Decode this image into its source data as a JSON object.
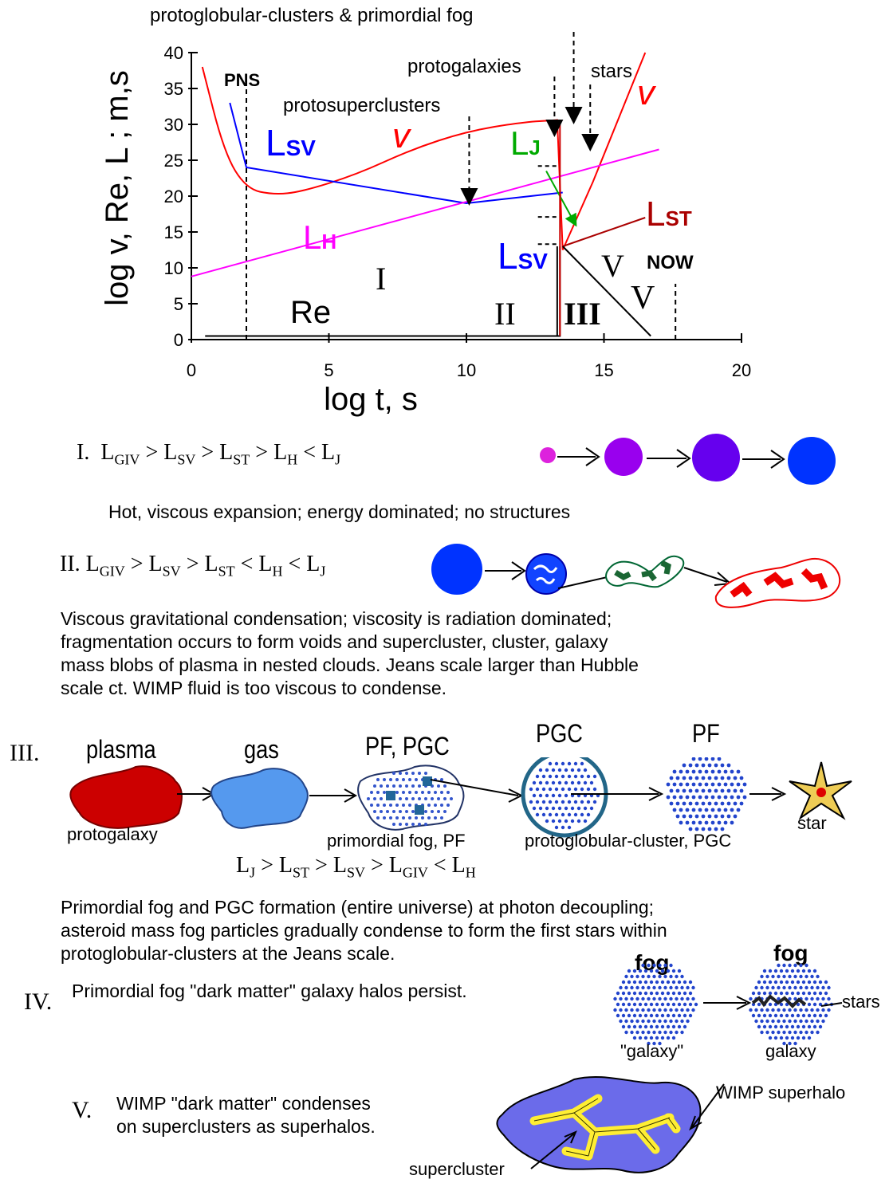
{
  "chart_data": {
    "type": "line",
    "title": "",
    "xlabel": "log t, s",
    "ylabel": "log v, Re, L ; m,s",
    "xlim": [
      0,
      20
    ],
    "ylim": [
      0,
      40
    ],
    "xticks": [
      "0",
      "5",
      "10",
      "15",
      "20"
    ],
    "yticks": [
      "0",
      "5",
      "10",
      "15",
      "20",
      "25",
      "30",
      "35",
      "40"
    ],
    "series": [
      {
        "name": "v",
        "color": "#ff0000",
        "x": [
          0.4,
          1.2,
          2,
          3,
          4,
          6,
          8,
          10,
          12,
          13.3,
          13.5,
          14.6,
          16.5
        ],
        "y": [
          38,
          26,
          21,
          20.2,
          20.6,
          23,
          26.5,
          29,
          30.3,
          30.6,
          12.5,
          22,
          40
        ]
      },
      {
        "name": "L_SV",
        "color": "#0000ff",
        "x": [
          1.4,
          2,
          10,
          13.5
        ],
        "y": [
          33,
          24,
          19,
          20.5
        ]
      },
      {
        "name": "L_H",
        "color": "#ff00ff",
        "x": [
          0,
          17
        ],
        "y": [
          8.8,
          26.5
        ]
      },
      {
        "name": "L_ST",
        "color": "#aa0000",
        "x": [
          13.5,
          16.5
        ],
        "y": [
          13,
          17
        ]
      },
      {
        "name": "L_J",
        "color": "#00aa00",
        "x": [
          12.9,
          13.9
        ],
        "y": [
          23.5,
          16.5
        ]
      },
      {
        "name": "V",
        "color": "#000000",
        "x": [
          13.5,
          16.7
        ],
        "y": [
          13,
          0.5
        ]
      },
      {
        "name": "Re",
        "color": "#000000",
        "x": [
          0.5,
          13.4,
          13.4
        ],
        "y": [
          0.5,
          0.5,
          13
        ]
      }
    ],
    "markers": [
      {
        "label": "PNS",
        "x": 2
      },
      {
        "label": "NOW",
        "x": 17.6
      }
    ]
  },
  "chart_labels": {
    "top": "protoglobular-clusters & primordial fog",
    "protogalaxies": "protogalaxies",
    "stars": "stars",
    "protosuperclusters": "protosuperclusters",
    "pns": "PNS",
    "now": "NOW",
    "v": "v",
    "v2": "v",
    "lsv": "L",
    "lsv_sub": "SV",
    "lsv2": "L",
    "lsv2_sub": "SV",
    "lj": "L",
    "lj_sub": "J",
    "lh": "L",
    "lh_sub": "H",
    "lst": "L",
    "lst_sub": "ST",
    "re": "Re",
    "reg1": "I",
    "reg2": "II",
    "reg3": "III",
    "reg4": "V",
    "reg5": "V"
  },
  "phase1": {
    "numeral": "I.",
    "formula": "L<sub>GIV</sub> &gt; L<sub>SV</sub> &gt; L<sub>ST</sub> &gt; L<sub>H</sub> &lt; L<sub>J</sub>",
    "desc": "Hot, viscous expansion; energy dominated; no structures"
  },
  "phase2": {
    "numeral": "II.",
    "formula": "L<sub>GIV</sub> &gt; L<sub>SV</sub> &gt; L<sub>ST</sub> &lt; L<sub>H</sub> &lt; L<sub>J</sub>",
    "desc": [
      "Viscous gravitational condensation; viscosity is radiation dominated;",
      "fragmentation occurs to form voids and supercluster, cluster, galaxy",
      "mass blobs of plasma in nested clouds.  Jeans scale larger than Hubble",
      "scale ct.  WIMP fluid is too viscous to condense."
    ]
  },
  "phase3": {
    "numeral": "III.",
    "plasma": "plasma",
    "gas": "gas",
    "pfpgc": "PF, PGC",
    "pgc": "PGC",
    "pf": "PF",
    "protogalaxy": "protogalaxy",
    "fog": "primordial fog, PF",
    "pgcfull": "protoglobular-cluster, PGC",
    "star": "star",
    "formula": "L<sub>J</sub> &gt; L<sub>ST</sub> &gt; L<sub>SV</sub> &gt; L<sub>GIV</sub> &lt; L<sub>H</sub>",
    "desc": [
      "Primordial fog and PGC formation (entire universe) at photon decoupling;",
      "asteroid mass fog particles gradually condense to form the first stars within",
      "protoglobular-clusters at the Jeans scale."
    ]
  },
  "phase4": {
    "numeral": "IV.",
    "desc": "Primordial fog \"dark matter\" galaxy halos persist.",
    "fog1": "fog",
    "fog2": "fog",
    "galaxy1": "\"galaxy\"",
    "galaxy2": "galaxy",
    "stars": "stars"
  },
  "phase5": {
    "numeral": "V.",
    "desc": [
      "WIMP \"dark matter\" condenses",
      "on superclusters as superhalos."
    ],
    "superhalo": "WIMP superhalo",
    "supercluster": "supercluster"
  }
}
